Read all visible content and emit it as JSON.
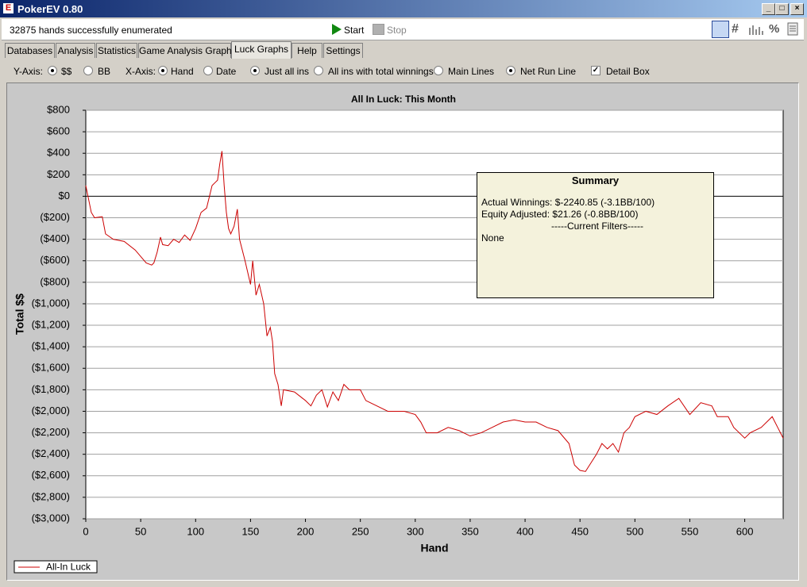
{
  "window": {
    "title": "PokerEV 0.80"
  },
  "toolbar": {
    "status": "32875 hands successfully enumerated",
    "start": "Start",
    "stop": "Stop",
    "percent": "%"
  },
  "tabs": {
    "items": [
      "Databases",
      "Analysis",
      "Statistics",
      "Game Analysis Graphs",
      "Luck Graphs",
      "Help",
      "Settings"
    ],
    "active": 4
  },
  "options": {
    "y_axis_label": "Y-Axis:",
    "x_axis_label": "X-Axis:",
    "controls": [
      {
        "text": "$$",
        "checked": true
      },
      {
        "text": "BB",
        "checked": false
      },
      {
        "text": "Hand",
        "checked": true
      },
      {
        "text": "Date",
        "checked": false
      },
      {
        "text": "Just all ins",
        "checked": true
      },
      {
        "text": "All ins with total winnings",
        "checked": false
      },
      {
        "text": "Main Lines",
        "checked": false
      },
      {
        "text": "Net Run Line",
        "checked": true
      },
      {
        "text": "Detail Box",
        "checked": true
      }
    ]
  },
  "chart_data": {
    "type": "line",
    "title": "All In Luck: This Month",
    "x_label": "Hand",
    "y_label": "Total $$",
    "xlim": [
      0,
      635
    ],
    "xticks": [
      0,
      50,
      100,
      150,
      200,
      250,
      300,
      350,
      400,
      450,
      500,
      550,
      600
    ],
    "ylim": [
      -3000,
      800
    ],
    "yticks": [
      {
        "value": -3000,
        "label": "($3,000)"
      },
      {
        "value": -2800,
        "label": "($2,800)"
      },
      {
        "value": -2600,
        "label": "($2,600)"
      },
      {
        "value": -2400,
        "label": "($2,400)"
      },
      {
        "value": -2200,
        "label": "($2,200)"
      },
      {
        "value": -2000,
        "label": "($2,000)"
      },
      {
        "value": -1800,
        "label": "($1,800)"
      },
      {
        "value": -1600,
        "label": "($1,600)"
      },
      {
        "value": -1400,
        "label": "($1,400)"
      },
      {
        "value": -1200,
        "label": "($1,200)"
      },
      {
        "value": -1000,
        "label": "($1,000)"
      },
      {
        "value": -800,
        "label": "($800)"
      },
      {
        "value": -600,
        "label": "($600)"
      },
      {
        "value": -400,
        "label": "($400)"
      },
      {
        "value": -200,
        "label": "($200)"
      },
      {
        "value": 0,
        "label": "$0"
      },
      {
        "value": 200,
        "label": "$200"
      },
      {
        "value": 400,
        "label": "$400"
      },
      {
        "value": 600,
        "label": "$600"
      },
      {
        "value": 800,
        "label": "$800"
      }
    ],
    "grid": true,
    "zero_line": true,
    "legend": "lower left",
    "x": [
      0,
      3,
      5,
      8,
      15,
      18,
      25,
      35,
      45,
      55,
      60,
      62,
      65,
      68,
      70,
      75,
      80,
      85,
      90,
      95,
      100,
      105,
      110,
      115,
      118,
      120,
      122,
      124,
      126,
      128,
      130,
      132,
      135,
      138,
      140,
      145,
      150,
      152,
      155,
      158,
      162,
      165,
      168,
      170,
      172,
      175,
      178,
      180,
      190,
      200,
      205,
      210,
      215,
      220,
      225,
      230,
      235,
      240,
      250,
      255,
      265,
      275,
      290,
      300,
      305,
      310,
      320,
      330,
      340,
      350,
      360,
      370,
      380,
      390,
      400,
      410,
      420,
      430,
      440,
      445,
      450,
      455,
      460,
      465,
      470,
      475,
      480,
      485,
      490,
      495,
      500,
      510,
      520,
      530,
      540,
      550,
      560,
      570,
      575,
      585,
      590,
      600,
      605,
      615,
      625,
      630,
      635
    ],
    "series": [
      {
        "name": "All-In Luck",
        "color": "#cc0000",
        "values": [
          100,
          -50,
          -150,
          -200,
          -190,
          -350,
          -400,
          -420,
          -500,
          -620,
          -640,
          -620,
          -520,
          -380,
          -450,
          -460,
          -400,
          -430,
          -360,
          -410,
          -300,
          -150,
          -110,
          100,
          130,
          150,
          300,
          420,
          100,
          -150,
          -300,
          -350,
          -280,
          -120,
          -400,
          -600,
          -820,
          -600,
          -920,
          -820,
          -1000,
          -1300,
          -1220,
          -1350,
          -1650,
          -1750,
          -1950,
          -1800,
          -1820,
          -1900,
          -1950,
          -1850,
          -1800,
          -1960,
          -1820,
          -1900,
          -1750,
          -1800,
          -1800,
          -1900,
          -1950,
          -2000,
          -2000,
          -2030,
          -2100,
          -2200,
          -2200,
          -2150,
          -2180,
          -2230,
          -2200,
          -2150,
          -2100,
          -2080,
          -2100,
          -2100,
          -2150,
          -2180,
          -2300,
          -2500,
          -2550,
          -2560,
          -2480,
          -2400,
          -2300,
          -2350,
          -2300,
          -2380,
          -2200,
          -2150,
          -2050,
          -2000,
          -2030,
          -1950,
          -1880,
          -2030,
          -1920,
          -1950,
          -2050,
          -2050,
          -2150,
          -2250,
          -2200,
          -2150,
          -2050,
          -2150,
          -2250
        ]
      }
    ]
  },
  "summary": {
    "title": "Summary",
    "lines": [
      "Actual Winnings: $-2240.85 (-3.1BB/100)",
      "Equity Adjusted: $21.26 (-0.8BB/100)",
      "-----Current Filters-----",
      "None"
    ]
  }
}
